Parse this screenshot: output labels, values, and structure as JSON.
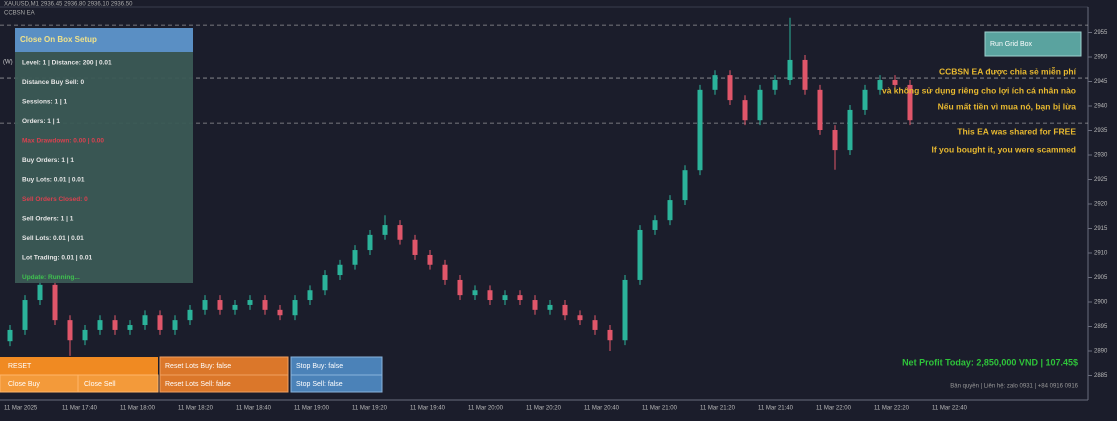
{
  "header": {
    "symbol": "XAUUSD,M1 2936.45 2936.80 2936.10 2936.50",
    "ea_name": "CCBSN EA",
    "mode": "(W)"
  },
  "panel": {
    "title": "Close On Box Setup",
    "rows": [
      {
        "text": "Level: 1 | Distance: 200 | 0.01",
        "color": "#e6e6e6"
      },
      {
        "text": "Distance Buy Sell: 0",
        "color": "#e6e6e6"
      },
      {
        "text": "Sessions: 1 | 1",
        "color": "#e6e6e6"
      },
      {
        "text": "Orders: 1 | 1",
        "color": "#e6e6e6"
      },
      {
        "text": "Max Drawdown: 0.00 | 0.00",
        "color": "#d9414f"
      },
      {
        "text": "Buy Orders: 1 | 1",
        "color": "#e6e6e6"
      },
      {
        "text": "Buy Lots: 0.01 | 0.01",
        "color": "#e6e6e6"
      },
      {
        "text": "Sell Orders Closed: 0",
        "color": "#d9414f"
      },
      {
        "text": "Sell Orders: 1 | 1",
        "color": "#e6e6e6"
      },
      {
        "text": "Sell Lots: 0.01 | 0.01",
        "color": "#e6e6e6"
      },
      {
        "text": "Lot Trading: 0.01 | 0.01",
        "color": "#e6e6e6"
      },
      {
        "text": "Update: Running...",
        "color": "#3fc14f"
      }
    ]
  },
  "buttons": {
    "reset": "RESET",
    "close_buy": "Close Buy",
    "close_sell": "Close Sell",
    "reset_buy": "Reset Lots Buy: false",
    "reset_sell": "Reset Lots Sell: false",
    "stop_buy": "Stop Buy: false",
    "stop_sell": "Stop Sell: false",
    "grid": "Run Grid Box"
  },
  "notices": [
    "CCBSN EA được chia sẻ miễn phí",
    "và không sử dụng riêng cho lợi ích cá nhân nào",
    "Nếu mất tiền vì mua nó, bạn bị lừa",
    "This EA was shared for FREE",
    "If you bought it, you were scammed"
  ],
  "net_profit": "Net Profit Today: 2,850,000 VND | 107.45$",
  "footer": "Bản quyền | Liên hệ: zalo 0931 | +84 0916 0916",
  "chart_data": {
    "type": "candlestick",
    "open": [
      2892.0,
      2894.3,
      2900.4,
      2903.5,
      2896.3,
      2892.2,
      2894.3,
      2896.3,
      2894.3,
      2895.3,
      2897.3,
      2894.3,
      2896.3,
      2898.4,
      2900.4,
      2898.4,
      2899.4,
      2900.4,
      2898.4,
      2897.3,
      2900.4,
      2902.4,
      2905.5,
      2907.6,
      2910.6,
      2913.7,
      2915.7,
      2912.7,
      2909.6,
      2907.6,
      2904.5,
      2901.4,
      2902.4,
      2900.4,
      2901.4,
      2900.4,
      2898.4,
      2899.4,
      2897.3,
      2896.3,
      2894.3,
      2892.2,
      2904.5,
      2914.7,
      2916.7,
      2920.8,
      2926.9,
      2943.3,
      2946.3,
      2941.2,
      2937.1,
      2943.3,
      2945.3,
      2949.4,
      2943.3,
      2935.1,
      2931.0,
      2939.2,
      2943.3,
      2945.3,
      2944.3
    ],
    "high": [
      2895.3,
      2901.4,
      2906.0,
      2904.5,
      2897.3,
      2895.3,
      2897.3,
      2897.3,
      2896.3,
      2898.3,
      2898.3,
      2897.3,
      2899.4,
      2901.4,
      2901.4,
      2900.4,
      2901.4,
      2901.4,
      2899.4,
      2901.4,
      2903.4,
      2906.5,
      2908.6,
      2911.6,
      2914.7,
      2917.7,
      2916.7,
      2913.7,
      2910.6,
      2908.6,
      2905.5,
      2903.4,
      2903.4,
      2902.4,
      2902.4,
      2901.4,
      2900.4,
      2900.4,
      2898.3,
      2897.3,
      2895.3,
      2905.5,
      2915.7,
      2917.7,
      2921.8,
      2927.9,
      2944.3,
      2947.3,
      2947.3,
      2942.2,
      2944.3,
      2946.3,
      2958.0,
      2950.4,
      2944.3,
      2936.1,
      2940.2,
      2944.3,
      2946.3,
      2946.3,
      2945.3
    ],
    "low": [
      2891.0,
      2893.3,
      2899.4,
      2895.3,
      2889.0,
      2891.2,
      2893.3,
      2893.3,
      2893.3,
      2894.3,
      2893.3,
      2893.3,
      2895.3,
      2897.4,
      2897.4,
      2897.4,
      2898.4,
      2897.4,
      2896.3,
      2896.3,
      2899.4,
      2901.4,
      2904.5,
      2906.6,
      2909.6,
      2912.7,
      2911.7,
      2908.6,
      2906.6,
      2903.5,
      2900.4,
      2900.4,
      2899.4,
      2899.4,
      2899.4,
      2897.4,
      2897.4,
      2896.3,
      2895.3,
      2893.3,
      2890.0,
      2891.2,
      2903.5,
      2913.7,
      2915.7,
      2919.8,
      2925.9,
      2942.3,
      2940.2,
      2936.1,
      2936.1,
      2942.3,
      2944.3,
      2942.3,
      2934.1,
      2927.0,
      2930.0,
      2938.2,
      2942.3,
      2943.3,
      2936.1
    ],
    "close": [
      2894.3,
      2900.4,
      2903.5,
      2896.3,
      2892.2,
      2894.3,
      2896.3,
      2894.3,
      2895.3,
      2897.3,
      2894.3,
      2896.3,
      2898.4,
      2900.4,
      2898.4,
      2899.4,
      2900.4,
      2898.4,
      2897.3,
      2900.4,
      2902.4,
      2905.5,
      2907.6,
      2910.6,
      2913.7,
      2915.7,
      2912.7,
      2909.6,
      2907.6,
      2904.5,
      2901.4,
      2902.4,
      2900.4,
      2901.4,
      2900.4,
      2898.4,
      2899.4,
      2897.3,
      2896.3,
      2894.3,
      2892.2,
      2904.5,
      2914.7,
      2916.7,
      2920.8,
      2926.9,
      2943.3,
      2946.3,
      2941.2,
      2937.1,
      2943.3,
      2945.3,
      2949.4,
      2943.3,
      2935.1,
      2931.0,
      2939.2,
      2943.3,
      2945.3,
      2944.3,
      2937.1
    ],
    "up_color": "#2bb39a",
    "down_color": "#e0566a",
    "levels": [
      2956.5,
      2945.7,
      2936.5
    ],
    "ylim": [
      2880,
      2960
    ],
    "yticks": [
      2885,
      2890,
      2895,
      2900,
      2905,
      2910,
      2915,
      2920,
      2925,
      2930,
      2935,
      2940,
      2945,
      2950,
      2955
    ],
    "x_labels": [
      "11 Mar 2025",
      "11 Mar 17:40",
      "11 Mar 18:00",
      "11 Mar 18:20",
      "11 Mar 18:40",
      "11 Mar 19:00",
      "11 Mar 19:20",
      "11 Mar 19:40",
      "11 Mar 20:00",
      "11 Mar 20:20",
      "11 Mar 20:40",
      "11 Mar 21:00",
      "11 Mar 21:20",
      "11 Mar 21:40",
      "11 Mar 22:00",
      "11 Mar 22:20",
      "11 Mar 22:40"
    ]
  }
}
